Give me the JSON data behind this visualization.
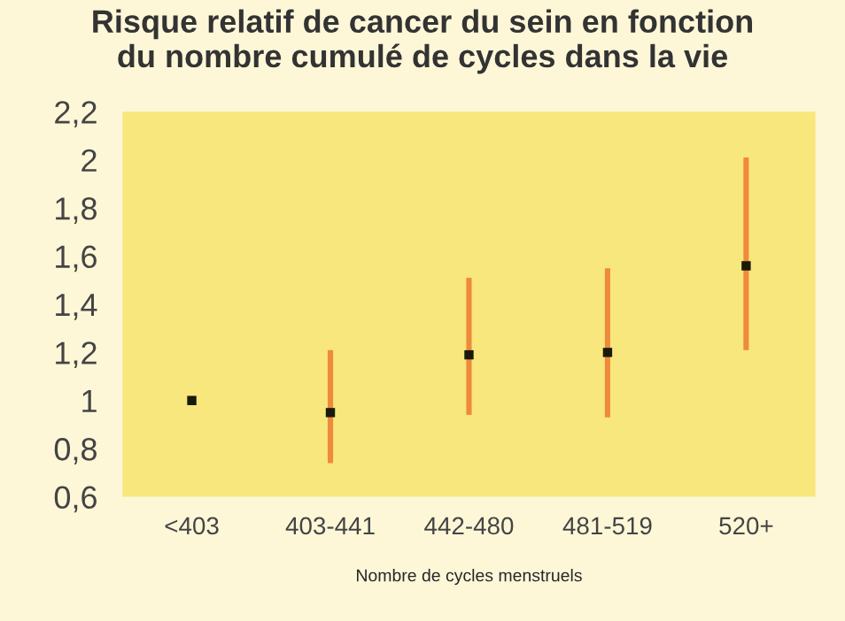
{
  "chart_data": {
    "type": "scatter",
    "title": "Risque relatif de cancer du sein en fonction\ndu nombre cumulé de cycles dans la vie",
    "xlabel": "Nombre de cycles menstruels",
    "categories": [
      "<403",
      "403-441",
      "442-480",
      "481-519",
      "520+"
    ],
    "series": [
      {
        "color": "#1a1a0a",
        "values": [
          1,
          0.95,
          1.19,
          1.2,
          1.56
        ],
        "errors": [
          null,
          [
            0.74,
            1.21
          ],
          [
            0.94,
            1.51
          ],
          [
            0.93,
            1.55
          ],
          [
            1.21,
            2.01
          ]
        ]
      }
    ],
    "ylim": [
      0.6,
      2.2
    ],
    "yticks": [
      {
        "value": 0.6,
        "label": "0,6"
      },
      {
        "value": 0.8,
        "label": "0,8"
      },
      1,
      {
        "value": 1.2,
        "label": "1,2"
      },
      {
        "value": 1.4,
        "label": "1,4"
      },
      {
        "value": 1.6,
        "label": "1,6"
      },
      {
        "value": 1.8,
        "label": "1,8"
      },
      2,
      {
        "value": 2.2,
        "label": "2,2"
      }
    ],
    "marker": "square",
    "grid": false
  }
}
